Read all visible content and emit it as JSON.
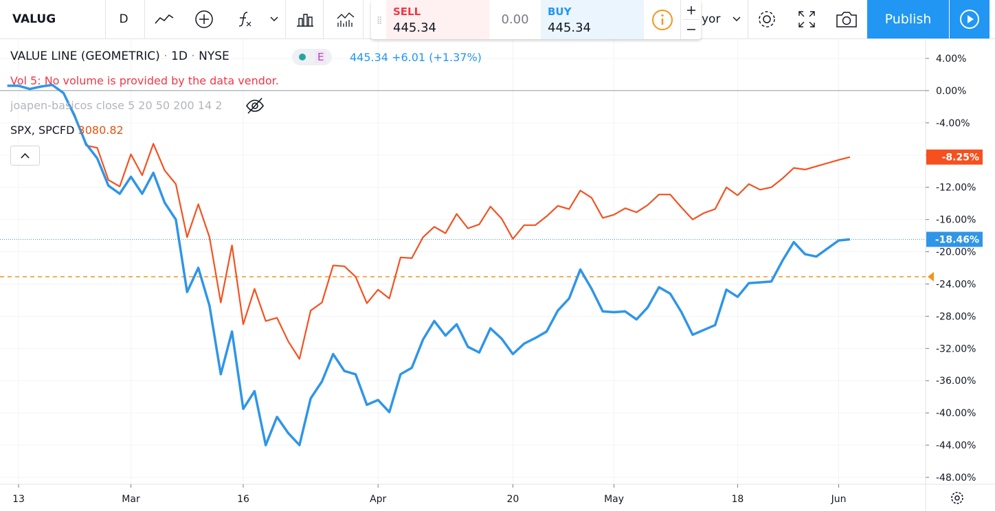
{
  "toolbar": {
    "symbol": "VALUG",
    "interval": "D",
    "sell_label": "SELL",
    "sell_price": "445.34",
    "spread": "0.00",
    "buy_label": "BUY",
    "buy_price": "445.34",
    "layout_name": "yor",
    "publish": "Publish"
  },
  "legend": {
    "exchange": "NYSE",
    "interval": "1D",
    "badge": "E",
    "last": "445.34",
    "change": "+6.01",
    "change_pct": "(+1.37%)",
    "vol_name": "Vol 5:",
    "vol_message": "No volume is provided by the data vendor.",
    "indicator": "joapen-basicos close 5 20 50 200 14 2",
    "compare_last": "3080.82"
  },
  "chart_data": {
    "type": "line",
    "categories": [
      null,
      "13",
      null,
      null,
      null,
      null,
      null,
      null,
      null,
      null,
      null,
      "Mar",
      null,
      null,
      null,
      null,
      null,
      null,
      null,
      null,
      null,
      "16",
      null,
      null,
      null,
      null,
      null,
      null,
      null,
      null,
      null,
      null,
      null,
      "Apr",
      null,
      null,
      null,
      null,
      null,
      null,
      null,
      null,
      null,
      null,
      null,
      "20",
      null,
      null,
      null,
      null,
      null,
      null,
      null,
      null,
      "May",
      null,
      null,
      null,
      null,
      null,
      null,
      null,
      null,
      null,
      null,
      "18",
      null,
      null,
      null,
      null,
      null,
      null,
      null,
      null,
      "Jun",
      null
    ],
    "series": [
      {
        "name": "VALUE LINE (GEOMETRIC)",
        "color": "#2f95e8",
        "values": [
          0.6,
          0.6,
          0.2,
          0.5,
          0.7,
          -0.3,
          -3.2,
          -6.6,
          -8.4,
          -11.8,
          -12.8,
          -10.7,
          -12.8,
          -10.2,
          -13.9,
          -16.0,
          -25.0,
          -22.0,
          -26.7,
          -35.2,
          -29.9,
          -39.5,
          -37.3,
          -44.0,
          -40.5,
          -42.5,
          -44.0,
          -38.2,
          -36.1,
          -32.7,
          -34.8,
          -35.2,
          -39.0,
          -38.4,
          -39.9,
          -35.2,
          -34.4,
          -30.9,
          -28.6,
          -30.4,
          -29.0,
          -31.8,
          -32.5,
          -29.5,
          -30.8,
          -32.7,
          -31.4,
          -30.7,
          -29.9,
          -27.3,
          -25.8,
          -22.2,
          -24.6,
          -27.4,
          -27.5,
          -27.4,
          -28.4,
          -26.9,
          -24.4,
          -25.2,
          -27.5,
          -30.3,
          -29.7,
          -29.1,
          -24.7,
          -25.6,
          -23.9,
          -23.8,
          -23.7,
          -21.1,
          -18.8,
          -20.3,
          -20.6,
          -19.6,
          -18.6,
          -18.46
        ],
        "value_labels": [
          null,
          null,
          null,
          null,
          null,
          null,
          null,
          null,
          null,
          null,
          null,
          null,
          null,
          null,
          null,
          null,
          null,
          null,
          null,
          null,
          null,
          null,
          null,
          null,
          null,
          null,
          null,
          null,
          null,
          null,
          null,
          null,
          null,
          null,
          null,
          null,
          null,
          null,
          null,
          null,
          null,
          null,
          null,
          null,
          null,
          null,
          null,
          null,
          null,
          null,
          null,
          null,
          null,
          null,
          null,
          null,
          null,
          null,
          null,
          null,
          null,
          null,
          null,
          null,
          null,
          null,
          null,
          null,
          null,
          null,
          null,
          null,
          null,
          null,
          null,
          "-18.46%"
        ]
      },
      {
        "name": "SPX, SPCFD",
        "color": "#f5501e",
        "values": [
          0.6,
          0.6,
          0.2,
          0.5,
          0.7,
          -0.3,
          -3.0,
          -6.8,
          -7.1,
          -11.1,
          -11.9,
          -7.9,
          -10.5,
          -6.6,
          -9.9,
          -11.6,
          -18.2,
          -14.1,
          -18.2,
          -26.3,
          -19.2,
          -29.0,
          -24.6,
          -28.6,
          -28.2,
          -31.1,
          -33.3,
          -27.3,
          -26.3,
          -21.7,
          -21.8,
          -23.1,
          -26.4,
          -24.7,
          -25.8,
          -20.7,
          -20.8,
          -18.2,
          -16.9,
          -17.7,
          -15.3,
          -17.1,
          -16.6,
          -14.4,
          -15.9,
          -18.4,
          -16.7,
          -16.7,
          -15.6,
          -14.3,
          -14.7,
          -12.4,
          -13.3,
          -15.8,
          -15.4,
          -14.6,
          -15.1,
          -14.2,
          -12.9,
          -12.9,
          -14.5,
          -16.0,
          -15.2,
          -14.7,
          -12.0,
          -13.0,
          -11.6,
          -12.3,
          -12.0,
          -10.9,
          -9.6,
          -9.8,
          -9.4,
          -9.0,
          -8.6,
          -8.25
        ],
        "value_labels": [
          null,
          null,
          null,
          null,
          null,
          null,
          null,
          null,
          null,
          null,
          null,
          null,
          null,
          null,
          null,
          null,
          null,
          null,
          null,
          null,
          null,
          null,
          null,
          null,
          null,
          null,
          null,
          null,
          null,
          null,
          null,
          null,
          null,
          null,
          null,
          null,
          null,
          null,
          null,
          null,
          null,
          null,
          null,
          null,
          null,
          null,
          null,
          null,
          null,
          null,
          null,
          null,
          null,
          null,
          null,
          null,
          null,
          null,
          null,
          null,
          null,
          null,
          null,
          null,
          null,
          null,
          null,
          null,
          null,
          null,
          null,
          null,
          null,
          null,
          null,
          "-8.25%"
        ]
      }
    ],
    "reference_line": {
      "value": -23.1,
      "color": "#f7931a"
    },
    "ylim": [
      -48.85,
      6.3
    ],
    "yticks": [
      {
        "value": 4,
        "label": "4.00%"
      },
      {
        "value": 0,
        "label": "0.00%"
      },
      {
        "value": -4,
        "label": "-4.00%"
      },
      {
        "value": -8,
        "label": "-8.00%"
      },
      {
        "value": -12,
        "label": "-12.00%"
      },
      {
        "value": -16,
        "label": "-16.00%"
      },
      {
        "value": -20,
        "label": "-20.00%"
      },
      {
        "value": -24,
        "label": "-24.00%"
      },
      {
        "value": -28,
        "label": "-28.00%"
      },
      {
        "value": -32,
        "label": "-32.00%"
      },
      {
        "value": -36,
        "label": "-36.00%"
      },
      {
        "value": -40,
        "label": "-40.00%"
      },
      {
        "value": -44,
        "label": "-44.00%"
      },
      {
        "value": -48,
        "label": "-48.00%"
      }
    ],
    "grid": true
  }
}
